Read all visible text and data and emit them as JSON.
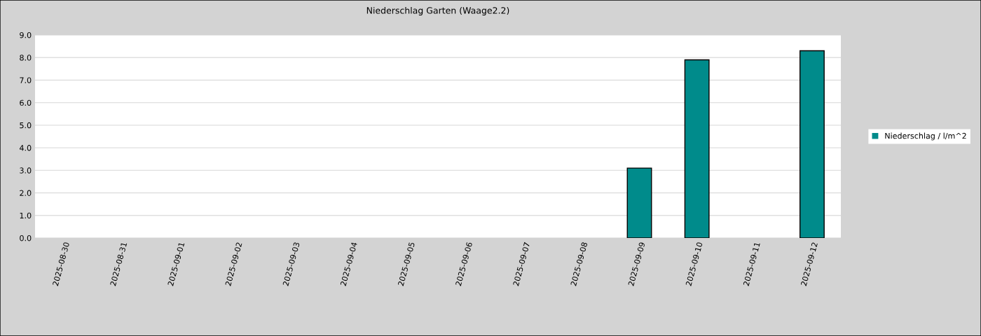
{
  "chart_data": {
    "type": "bar",
    "title": "Niederschlag Garten (Waage2.2)",
    "categories": [
      "2025-08-30",
      "2025-08-31",
      "2025-09-01",
      "2025-09-02",
      "2025-09-03",
      "2025-09-04",
      "2025-09-05",
      "2025-09-06",
      "2025-09-07",
      "2025-09-08",
      "2025-09-09",
      "2025-09-10",
      "2025-09-11",
      "2025-09-12"
    ],
    "series": [
      {
        "name": "Niederschlag / l/m^2",
        "color": "#008b8b",
        "values": [
          null,
          null,
          null,
          null,
          null,
          null,
          null,
          null,
          null,
          null,
          3.1,
          7.9,
          null,
          8.3
        ]
      }
    ],
    "ylim": [
      0,
      9
    ],
    "yticks": [
      {
        "value": 0,
        "label": "0.0"
      },
      {
        "value": 1,
        "label": "1.0"
      },
      {
        "value": 2,
        "label": "2.0"
      },
      {
        "value": 3,
        "label": "3.0"
      },
      {
        "value": 4,
        "label": "4.0"
      },
      {
        "value": 5,
        "label": "5.0"
      },
      {
        "value": 6,
        "label": "6.0"
      },
      {
        "value": 7,
        "label": "7.0"
      },
      {
        "value": 8,
        "label": "8.0"
      },
      {
        "value": 9,
        "label": "9.0"
      }
    ],
    "grid": "y",
    "legend": "right"
  }
}
